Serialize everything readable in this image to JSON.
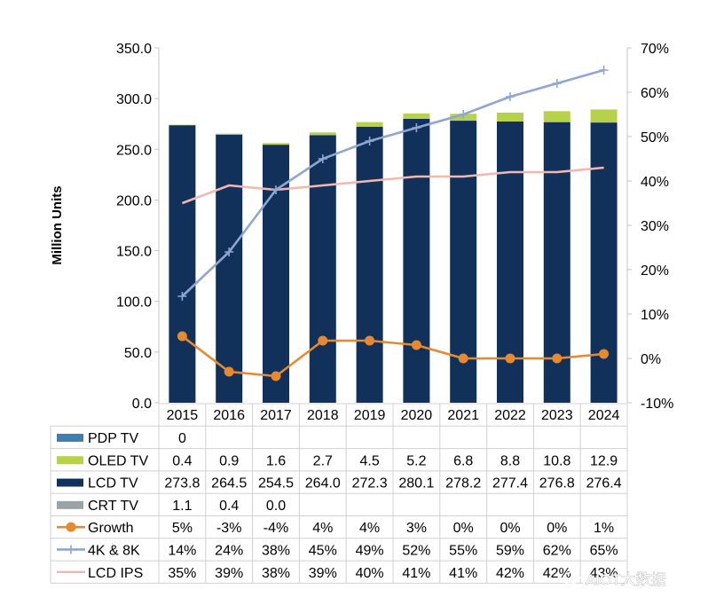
{
  "chart_data": {
    "type": "bar",
    "categories": [
      "2015",
      "2016",
      "2017",
      "2018",
      "2019",
      "2020",
      "2021",
      "2022",
      "2023",
      "2024"
    ],
    "ylabel": "Million Units",
    "ylim": [
      0,
      350
    ],
    "y_ticks": [
      "0.0",
      "50.0",
      "100.0",
      "150.0",
      "200.0",
      "250.0",
      "300.0",
      "350.0"
    ],
    "y2lim": [
      -0.1,
      0.7
    ],
    "y2_ticks": [
      "-10%",
      "0%",
      "10%",
      "20%",
      "30%",
      "40%",
      "50%",
      "60%",
      "70%"
    ],
    "grid": false,
    "stacked": true,
    "series": [
      {
        "name": "PDP TV",
        "kind": "bar",
        "axis": "left",
        "color": "#3f7fb0",
        "values": [
          0,
          null,
          null,
          null,
          null,
          null,
          null,
          null,
          null,
          null
        ],
        "labels": [
          "0",
          "",
          "",
          "",
          "",
          "",
          "",
          "",
          "",
          ""
        ]
      },
      {
        "name": "OLED TV",
        "kind": "bar",
        "axis": "left",
        "color": "#b8d14b",
        "values": [
          0.4,
          0.9,
          1.6,
          2.7,
          4.5,
          5.2,
          6.8,
          8.8,
          10.8,
          12.9
        ],
        "labels": [
          "0.4",
          "0.9",
          "1.6",
          "2.7",
          "4.5",
          "5.2",
          "6.8",
          "8.8",
          "10.8",
          "12.9"
        ]
      },
      {
        "name": "LCD TV",
        "kind": "bar",
        "axis": "left",
        "color": "#11315a",
        "values": [
          273.8,
          264.5,
          254.5,
          264.0,
          272.3,
          280.1,
          278.2,
          277.4,
          276.8,
          276.4
        ],
        "labels": [
          "273.8",
          "264.5",
          "254.5",
          "264.0",
          "272.3",
          "280.1",
          "278.2",
          "277.4",
          "276.8",
          "276.4"
        ]
      },
      {
        "name": "CRT TV",
        "kind": "bar",
        "axis": "left",
        "color": "#9aa4a8",
        "values": [
          1.1,
          0.4,
          0.0,
          null,
          null,
          null,
          null,
          null,
          null,
          null
        ],
        "labels": [
          "1.1",
          "0.4",
          "0.0",
          "",
          "",
          "",
          "",
          "",
          "",
          ""
        ]
      },
      {
        "name": "Growth",
        "kind": "line",
        "axis": "right",
        "marker": "circle",
        "color": "#e6892f",
        "values": [
          0.05,
          -0.03,
          -0.04,
          0.04,
          0.04,
          0.03,
          0.0,
          0.0,
          0.0,
          0.01
        ],
        "labels": [
          "5%",
          "-3%",
          "-4%",
          "4%",
          "4%",
          "3%",
          "0%",
          "0%",
          "0%",
          "1%"
        ]
      },
      {
        "name": "4K & 8K",
        "kind": "line",
        "axis": "right",
        "marker": "plus",
        "color": "#8fa5d2",
        "values": [
          0.14,
          0.24,
          0.38,
          0.45,
          0.49,
          0.52,
          0.55,
          0.59,
          0.62,
          0.65
        ],
        "labels": [
          "14%",
          "24%",
          "38%",
          "45%",
          "49%",
          "52%",
          "55%",
          "59%",
          "62%",
          "65%"
        ]
      },
      {
        "name": "LCD IPS",
        "kind": "line",
        "axis": "right",
        "marker": "none",
        "color": "#f2b8b0",
        "values": [
          0.35,
          0.39,
          0.38,
          0.39,
          0.4,
          0.41,
          0.41,
          0.42,
          0.42,
          0.43
        ],
        "labels": [
          "35%",
          "39%",
          "38%",
          "39%",
          "40%",
          "41%",
          "41%",
          "42%",
          "42%",
          "43%"
        ]
      }
    ],
    "bar_draw_order": [
      "LCD TV",
      "OLED TV"
    ],
    "line_draw_order": [
      "LCD IPS",
      "4K & 8K",
      "Growth"
    ]
  },
  "colors": {
    "axis": "#c6c6c6",
    "table_border": "#d0d0d0",
    "text": "#000000",
    "watermark": "#ffffff"
  },
  "watermark": {
    "icon": "wechat-icon",
    "text": "AIOT大数据"
  }
}
